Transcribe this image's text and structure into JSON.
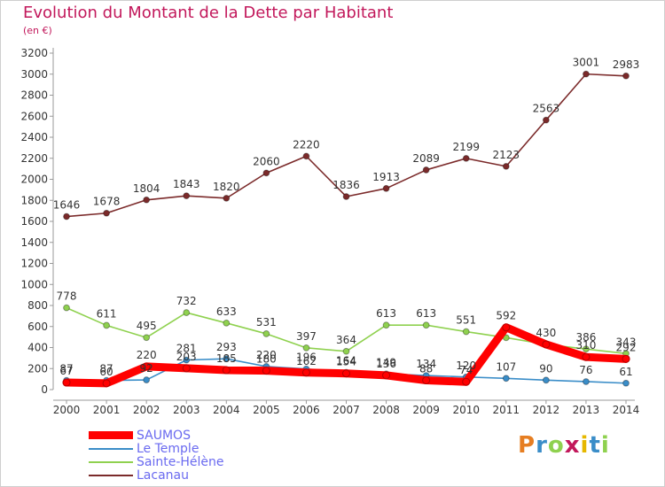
{
  "header": {
    "title": "Evolution du Montant de la Dette par Habitant",
    "subtitle": "(en €)"
  },
  "logo": {
    "text": "Proxiti"
  },
  "chart_data": {
    "type": "line",
    "title": "Evolution du Montant de la Dette par Habitant",
    "subtitle": "(en €)",
    "x": [
      "2000",
      "2001",
      "2002",
      "2003",
      "2004",
      "2005",
      "2006",
      "2007",
      "2008",
      "2009",
      "2010",
      "2011",
      "2012",
      "2013",
      "2014"
    ],
    "ylim": [
      0,
      3200
    ],
    "yticks": [
      0,
      200,
      400,
      600,
      800,
      1000,
      1200,
      1400,
      1600,
      1800,
      2000,
      2200,
      2400,
      2600,
      2800,
      3000,
      3200
    ],
    "grid": false,
    "legend_position": "bottom-left",
    "series": [
      {
        "name": "SAUMOS",
        "color": "#ff0000",
        "values": [
          67,
          60,
          220,
          203,
          185,
          180,
          162,
          154,
          136,
          88,
          74,
          592,
          430,
          310,
          292
        ],
        "labels": [
          "67",
          "60",
          "220",
          "203",
          "185",
          "180",
          "162",
          "154",
          "136",
          "88",
          "74",
          "592",
          "430",
          "310",
          "292"
        ]
      },
      {
        "name": "Le Temple",
        "color": "#3a8dc8",
        "values": [
          87,
          87,
          92,
          281,
          293,
          220,
          196,
          164,
          149,
          134,
          120,
          107,
          90,
          76,
          61
        ],
        "labels": [
          "87",
          "87",
          "92",
          "281",
          "293",
          "220",
          "196",
          "164",
          "149",
          "134",
          "120",
          "107",
          "90",
          "76",
          "61"
        ]
      },
      {
        "name": "Sainte-Hélène",
        "color": "#8fd14f",
        "values": [
          778,
          611,
          495,
          732,
          633,
          531,
          397,
          364,
          613,
          613,
          551,
          494,
          430,
          386,
          343
        ],
        "labels": [
          "778",
          "611",
          "495",
          "732",
          "633",
          "531",
          "397",
          "364",
          "613",
          "613",
          "551",
          "",
          "",
          "386",
          "343"
        ]
      },
      {
        "name": "Lacanau",
        "color": "#7b2a2a",
        "values": [
          1646,
          1678,
          1804,
          1843,
          1820,
          2060,
          2220,
          1836,
          1913,
          2089,
          2199,
          2123,
          2563,
          3001,
          2983
        ],
        "labels": [
          "1646",
          "1678",
          "1804",
          "1843",
          "1820",
          "2060",
          "2220",
          "1836",
          "1913",
          "2089",
          "2199",
          "2123",
          "2563",
          "3001",
          "2983"
        ]
      }
    ]
  },
  "legend": [
    {
      "label": "SAUMOS",
      "color": "#ff0000"
    },
    {
      "label": "Le Temple",
      "color": "#3a8dc8"
    },
    {
      "label": "Sainte-Hélène",
      "color": "#8fd14f"
    },
    {
      "label": "Lacanau",
      "color": "#7b2a2a"
    }
  ],
  "logo_colors": [
    "#e67e22",
    "#3a8dc8",
    "#8fd14f",
    "#c2185b",
    "#e6b800",
    "#3a8dc8",
    "#8fd14f"
  ]
}
